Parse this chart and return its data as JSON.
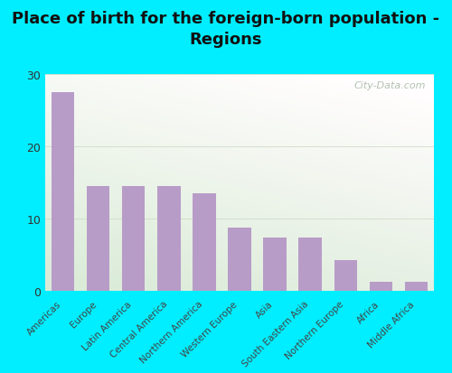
{
  "title": "Place of birth for the foreign-born population -\nRegions",
  "categories": [
    "Americas",
    "Europe",
    "Latin America",
    "Central America",
    "Northern America",
    "Western Europe",
    "Asia",
    "South Eastern Asia",
    "Northern Europe",
    "Africa",
    "Middle Africa"
  ],
  "values": [
    27.5,
    14.5,
    14.5,
    14.5,
    13.5,
    8.7,
    7.3,
    7.3,
    4.3,
    1.2,
    1.2
  ],
  "bar_color": "#b89cc8",
  "background_outer": "#00eeff",
  "yticks": [
    0,
    10,
    20,
    30
  ],
  "ylim": [
    0,
    30
  ],
  "title_fontsize": 13,
  "tick_label_fontsize": 7.5,
  "ytick_fontsize": 9,
  "watermark_text": "City-Data.com",
  "watermark_color": "#aabba8"
}
